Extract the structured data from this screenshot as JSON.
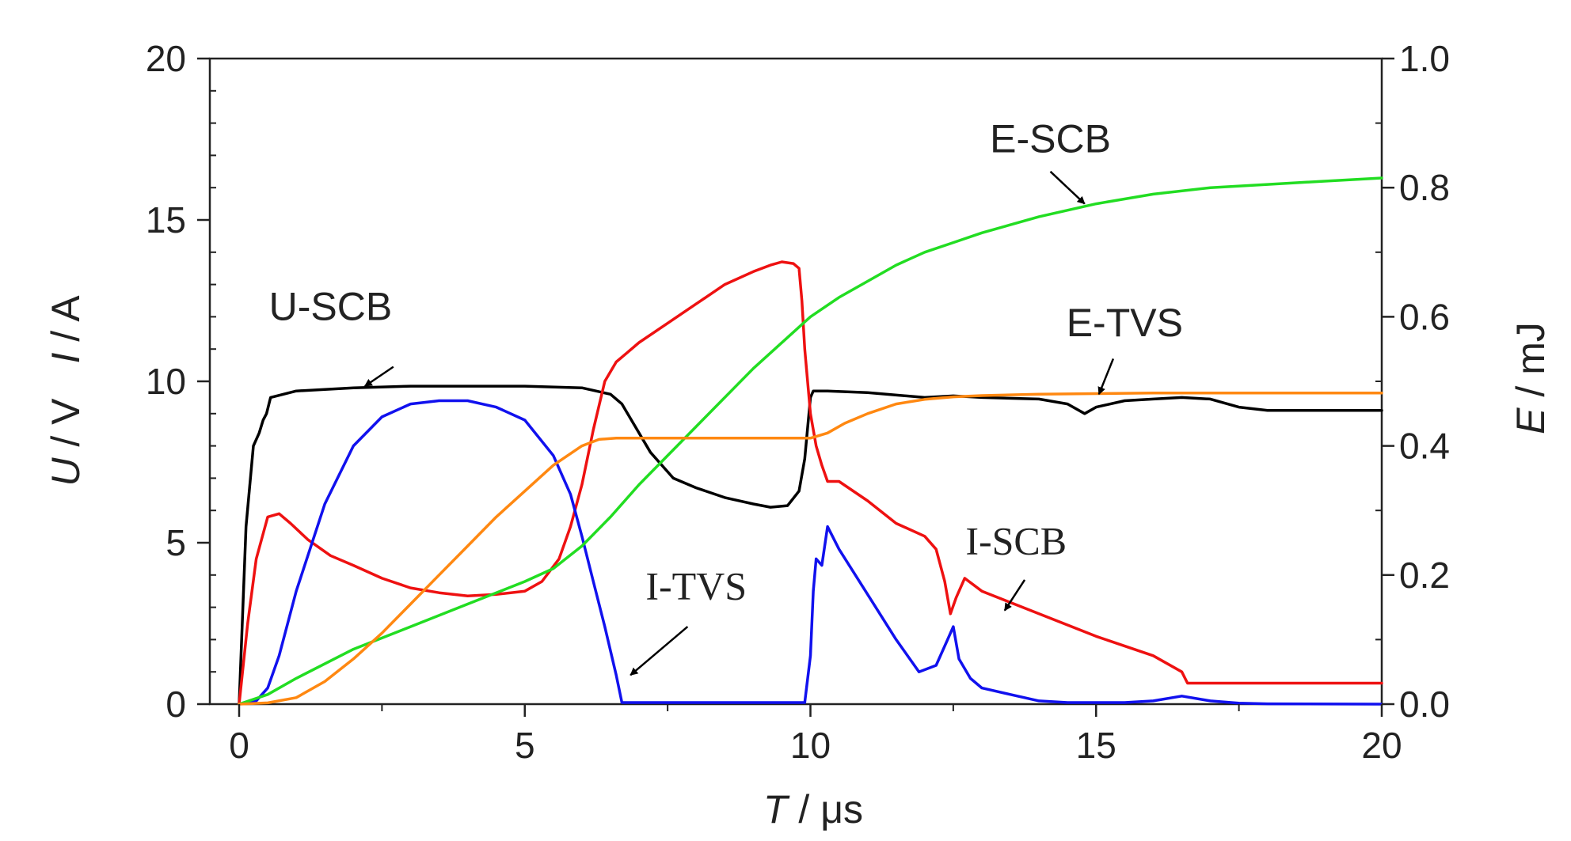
{
  "chart_data": {
    "type": "line",
    "xlabel": {
      "var": "T",
      "unit": " / μs"
    },
    "ylabel_left": {
      "var1": "U",
      "unit1": " / V",
      "var2": "I",
      "unit2": " / A"
    },
    "ylabel_right": {
      "var": "E",
      "unit": " / mJ"
    },
    "xlim": [
      0,
      20
    ],
    "ylim_left": [
      0,
      20
    ],
    "ylim_right": [
      0,
      1.0
    ],
    "x_ticks": [
      "0",
      "5",
      "10",
      "15",
      "20"
    ],
    "y_left_ticks": [
      "0",
      "5",
      "10",
      "15",
      "20"
    ],
    "y_right_ticks": [
      "0.0",
      "0.2",
      "0.4",
      "0.6",
      "0.8",
      "1.0"
    ],
    "grid": false,
    "series": [
      {
        "name": "U-SCB",
        "color": "#000000",
        "axis": "left",
        "x": [
          0,
          0.12,
          0.25,
          0.35,
          0.42,
          0.48,
          0.55,
          1.0,
          2.0,
          3.0,
          4.0,
          5.0,
          6.0,
          6.5,
          6.7,
          6.9,
          7.2,
          7.6,
          8.0,
          8.5,
          9.0,
          9.3,
          9.6,
          9.8,
          9.9,
          10.0,
          10.05,
          10.3,
          11.0,
          12.0,
          12.5,
          13.0,
          14.0,
          14.5,
          14.8,
          15.0,
          15.5,
          16.0,
          16.5,
          17.0,
          17.5,
          18.0,
          19.0,
          20.0
        ],
        "y": [
          0,
          5.5,
          8.0,
          8.4,
          8.8,
          9.0,
          9.5,
          9.7,
          9.8,
          9.85,
          9.85,
          9.85,
          9.8,
          9.6,
          9.3,
          8.7,
          7.8,
          7.0,
          6.7,
          6.4,
          6.2,
          6.1,
          6.15,
          6.6,
          7.6,
          9.5,
          9.7,
          9.7,
          9.65,
          9.5,
          9.55,
          9.5,
          9.45,
          9.3,
          9.0,
          9.2,
          9.4,
          9.45,
          9.5,
          9.45,
          9.2,
          9.1,
          9.1,
          9.1
        ]
      },
      {
        "name": "I-SCB",
        "color": "#ee1111",
        "axis": "left",
        "x": [
          0,
          0.15,
          0.3,
          0.5,
          0.7,
          0.9,
          1.2,
          1.6,
          2.0,
          2.5,
          3.0,
          3.5,
          4.0,
          4.5,
          5.0,
          5.3,
          5.6,
          5.8,
          6.0,
          6.2,
          6.4,
          6.6,
          6.8,
          7.0,
          7.5,
          8.0,
          8.5,
          9.0,
          9.3,
          9.5,
          9.7,
          9.8,
          9.85,
          9.9,
          10.0,
          10.1,
          10.2,
          10.3,
          10.5,
          11.0,
          11.5,
          12.0,
          12.2,
          12.35,
          12.45,
          12.55,
          12.7,
          13.0,
          14.0,
          15.0,
          16.0,
          16.5,
          16.6,
          17.0,
          18.0,
          19.0,
          20.0
        ],
        "y": [
          0,
          2.5,
          4.5,
          5.8,
          5.9,
          5.6,
          5.1,
          4.6,
          4.3,
          3.9,
          3.6,
          3.45,
          3.35,
          3.4,
          3.5,
          3.8,
          4.5,
          5.5,
          6.8,
          8.5,
          10.0,
          10.6,
          10.9,
          11.2,
          11.8,
          12.4,
          13.0,
          13.4,
          13.6,
          13.7,
          13.65,
          13.5,
          12.5,
          11.0,
          9.0,
          8.0,
          7.4,
          6.9,
          6.9,
          6.3,
          5.6,
          5.2,
          4.8,
          3.8,
          2.8,
          3.3,
          3.9,
          3.5,
          2.8,
          2.1,
          1.5,
          1.0,
          0.65,
          0.65,
          0.65,
          0.65,
          0.65
        ]
      },
      {
        "name": "I-TVS",
        "color": "#1111ee",
        "axis": "left",
        "x": [
          0,
          0.3,
          0.5,
          0.7,
          1.0,
          1.5,
          2.0,
          2.5,
          3.0,
          3.5,
          4.0,
          4.5,
          5.0,
          5.5,
          5.8,
          6.0,
          6.2,
          6.4,
          6.6,
          6.7,
          7.0,
          8.0,
          9.0,
          9.9,
          10.0,
          10.05,
          10.1,
          10.2,
          10.3,
          10.5,
          11.0,
          11.5,
          11.9,
          12.2,
          12.4,
          12.5,
          12.6,
          12.8,
          13.0,
          13.5,
          14.0,
          14.5,
          15.0,
          15.5,
          16.0,
          16.5,
          17.0,
          17.5,
          18.0,
          20.0
        ],
        "y": [
          0,
          0.1,
          0.5,
          1.5,
          3.5,
          6.2,
          8.0,
          8.9,
          9.3,
          9.4,
          9.4,
          9.2,
          8.8,
          7.7,
          6.5,
          5.2,
          3.8,
          2.4,
          0.9,
          0.05,
          0.05,
          0.05,
          0.05,
          0.05,
          1.5,
          3.5,
          4.5,
          4.3,
          5.5,
          4.8,
          3.4,
          2.0,
          1.0,
          1.2,
          2.0,
          2.4,
          1.4,
          0.8,
          0.5,
          0.3,
          0.1,
          0.05,
          0.05,
          0.05,
          0.1,
          0.25,
          0.1,
          0.03,
          0.01,
          0
        ]
      },
      {
        "name": "E-SCB",
        "color": "#22dd22",
        "axis": "right",
        "x": [
          0,
          0.5,
          1.0,
          2.0,
          3.0,
          4.0,
          5.0,
          5.5,
          6.0,
          6.5,
          7.0,
          8.0,
          9.0,
          10.0,
          10.5,
          11.0,
          11.5,
          12.0,
          12.5,
          13.0,
          14.0,
          15.0,
          16.0,
          17.0,
          18.0,
          19.0,
          20.0
        ],
        "y": [
          0,
          0.015,
          0.04,
          0.085,
          0.12,
          0.155,
          0.19,
          0.21,
          0.245,
          0.29,
          0.34,
          0.43,
          0.52,
          0.6,
          0.63,
          0.655,
          0.68,
          0.7,
          0.715,
          0.73,
          0.755,
          0.775,
          0.79,
          0.8,
          0.805,
          0.81,
          0.815
        ]
      },
      {
        "name": "E-TVS",
        "color": "#ff8811",
        "axis": "right",
        "x": [
          0,
          0.5,
          1.0,
          1.5,
          2.0,
          2.5,
          3.0,
          3.5,
          4.0,
          4.5,
          5.0,
          5.5,
          6.0,
          6.3,
          6.6,
          7.0,
          8.0,
          9.0,
          10.0,
          10.3,
          10.6,
          11.0,
          11.5,
          12.0,
          12.5,
          13.0,
          14.0,
          15.0,
          16.0,
          17.0,
          20.0
        ],
        "y": [
          0,
          0.002,
          0.01,
          0.035,
          0.07,
          0.11,
          0.155,
          0.2,
          0.245,
          0.29,
          0.33,
          0.37,
          0.4,
          0.41,
          0.412,
          0.412,
          0.412,
          0.412,
          0.412,
          0.42,
          0.435,
          0.45,
          0.465,
          0.472,
          0.476,
          0.478,
          0.48,
          0.481,
          0.482,
          0.482,
          0.482
        ]
      }
    ],
    "annotations": [
      {
        "id": "u-scb",
        "text": "U-SCB",
        "label_at": [
          1.6,
          11.9
        ],
        "arrow_from": [
          2.7,
          10.45
        ],
        "arrow_to": [
          2.2,
          9.85
        ],
        "axis": "left"
      },
      {
        "id": "e-scb",
        "text": "E-SCB",
        "label_at": [
          14.2,
          17.1
        ],
        "arrow_from": [
          14.2,
          16.5
        ],
        "arrow_to": [
          14.8,
          15.5
        ],
        "axis": "left"
      },
      {
        "id": "e-tvs",
        "text": "E-TVS",
        "label_at": [
          15.5,
          11.4
        ],
        "arrow_from": [
          15.3,
          10.7
        ],
        "arrow_to": [
          15.05,
          9.6
        ],
        "axis": "left"
      },
      {
        "id": "i-scb",
        "text": "I-SCB",
        "label_at": [
          13.6,
          4.65
        ],
        "arrow_from": [
          13.75,
          3.85
        ],
        "arrow_to": [
          13.4,
          2.9
        ],
        "axis": "left"
      },
      {
        "id": "i-tvs",
        "text": "I-TVS",
        "label_at": [
          8.0,
          3.25
        ],
        "arrow_from": [
          7.85,
          2.4
        ],
        "arrow_to": [
          6.85,
          0.9
        ],
        "axis": "left"
      }
    ]
  }
}
